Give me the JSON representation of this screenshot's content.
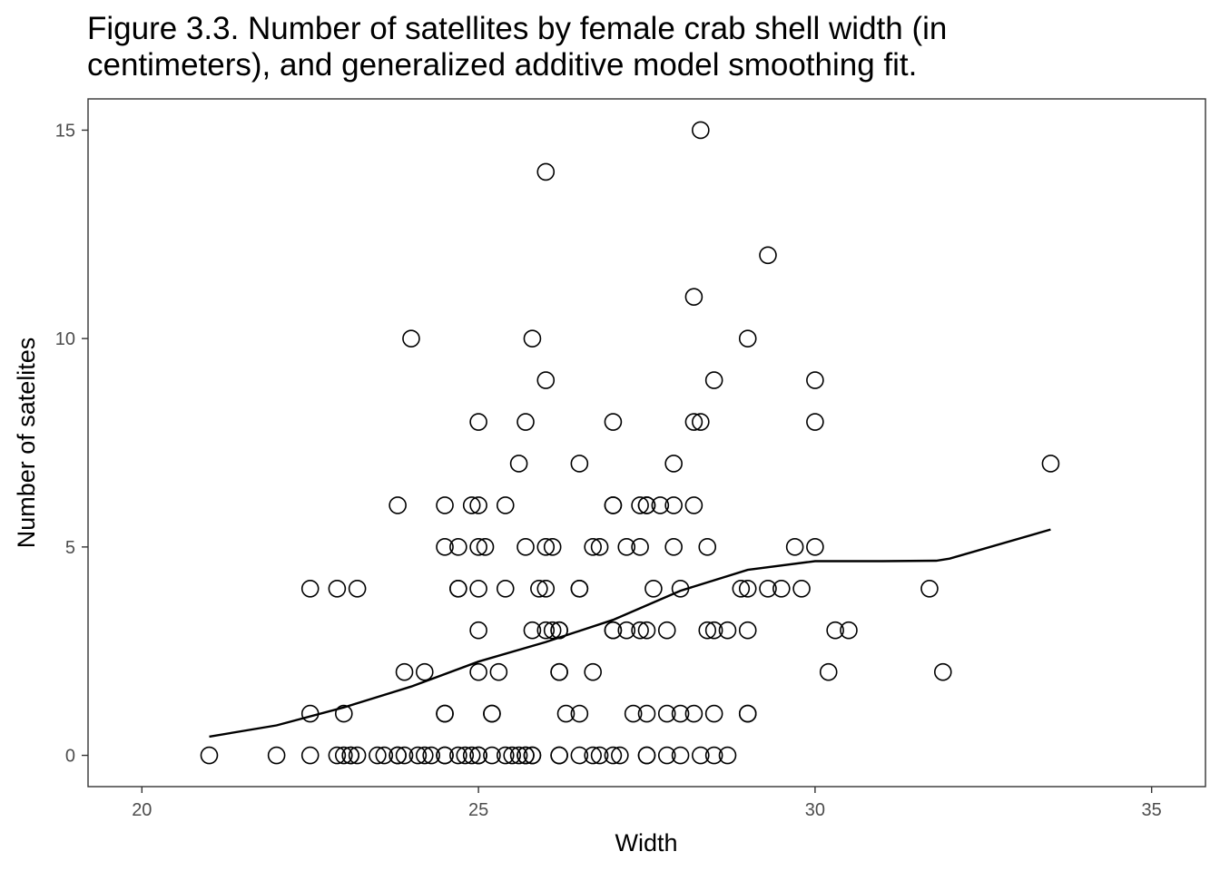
{
  "chart_data": {
    "type": "scatter",
    "title_lines": [
      "Figure 3.3.  Number of satellites by female crab shell width (in",
      "centimeters), and generalized additive model smoothing fit."
    ],
    "xlabel": "Width",
    "ylabel": "Number of satelites",
    "xlim": [
      19.2,
      35.8
    ],
    "ylim": [
      -0.75,
      15.75
    ],
    "x_ticks": [
      20,
      25,
      30,
      35
    ],
    "y_ticks": [
      0,
      5,
      10,
      15
    ],
    "grid": false,
    "legend": "none",
    "point_style": "open-circle",
    "colors": {
      "points": "#000000",
      "line": "#000000",
      "panel_border": "#333333",
      "tick_text": "#4d4d4d"
    },
    "points": [
      [
        21.0,
        0
      ],
      [
        22.0,
        0
      ],
      [
        22.5,
        0
      ],
      [
        22.9,
        0
      ],
      [
        23.0,
        0
      ],
      [
        23.1,
        0
      ],
      [
        23.1,
        0
      ],
      [
        23.2,
        0
      ],
      [
        23.5,
        0
      ],
      [
        23.6,
        0
      ],
      [
        23.8,
        0
      ],
      [
        23.8,
        0
      ],
      [
        23.9,
        0
      ],
      [
        24.1,
        0
      ],
      [
        24.2,
        0
      ],
      [
        24.3,
        0
      ],
      [
        24.5,
        0
      ],
      [
        24.5,
        0
      ],
      [
        24.7,
        0
      ],
      [
        24.8,
        0
      ],
      [
        24.9,
        0
      ],
      [
        25.0,
        0
      ],
      [
        25.0,
        0
      ],
      [
        25.2,
        0
      ],
      [
        25.4,
        0
      ],
      [
        25.5,
        0
      ],
      [
        25.6,
        0
      ],
      [
        25.7,
        0
      ],
      [
        25.7,
        0
      ],
      [
        25.8,
        0
      ],
      [
        25.8,
        0
      ],
      [
        26.2,
        0
      ],
      [
        26.2,
        0
      ],
      [
        26.5,
        0
      ],
      [
        26.7,
        0
      ],
      [
        26.8,
        0
      ],
      [
        27.0,
        0
      ],
      [
        27.1,
        0
      ],
      [
        27.5,
        0
      ],
      [
        27.5,
        0
      ],
      [
        27.8,
        0
      ],
      [
        28.0,
        0
      ],
      [
        28.3,
        0
      ],
      [
        28.5,
        0
      ],
      [
        28.7,
        0
      ],
      [
        22.5,
        1
      ],
      [
        23.0,
        1
      ],
      [
        24.5,
        1
      ],
      [
        24.5,
        1
      ],
      [
        25.2,
        1
      ],
      [
        25.2,
        1
      ],
      [
        26.3,
        1
      ],
      [
        26.5,
        1
      ],
      [
        27.3,
        1
      ],
      [
        27.5,
        1
      ],
      [
        27.8,
        1
      ],
      [
        28.0,
        1
      ],
      [
        28.2,
        1
      ],
      [
        28.5,
        1
      ],
      [
        29.0,
        1
      ],
      [
        29.0,
        1
      ],
      [
        23.9,
        2
      ],
      [
        24.2,
        2
      ],
      [
        25.0,
        2
      ],
      [
        25.3,
        2
      ],
      [
        26.2,
        2
      ],
      [
        26.2,
        2
      ],
      [
        26.7,
        2
      ],
      [
        30.2,
        2
      ],
      [
        31.9,
        2
      ],
      [
        25.0,
        3
      ],
      [
        25.8,
        3
      ],
      [
        26.0,
        3
      ],
      [
        26.1,
        3
      ],
      [
        26.2,
        3
      ],
      [
        26.2,
        3
      ],
      [
        27.0,
        3
      ],
      [
        27.0,
        3
      ],
      [
        27.2,
        3
      ],
      [
        27.4,
        3
      ],
      [
        27.5,
        3
      ],
      [
        27.8,
        3
      ],
      [
        28.4,
        3
      ],
      [
        28.5,
        3
      ],
      [
        28.7,
        3
      ],
      [
        29.0,
        3
      ],
      [
        30.3,
        3
      ],
      [
        30.5,
        3
      ],
      [
        22.5,
        4
      ],
      [
        22.9,
        4
      ],
      [
        23.2,
        4
      ],
      [
        24.7,
        4
      ],
      [
        24.7,
        4
      ],
      [
        25.0,
        4
      ],
      [
        25.4,
        4
      ],
      [
        25.9,
        4
      ],
      [
        26.0,
        4
      ],
      [
        26.5,
        4
      ],
      [
        26.5,
        4
      ],
      [
        27.6,
        4
      ],
      [
        28.0,
        4
      ],
      [
        28.9,
        4
      ],
      [
        29.0,
        4
      ],
      [
        29.3,
        4
      ],
      [
        29.5,
        4
      ],
      [
        29.8,
        4
      ],
      [
        31.7,
        4
      ],
      [
        24.5,
        5
      ],
      [
        24.7,
        5
      ],
      [
        25.0,
        5
      ],
      [
        25.1,
        5
      ],
      [
        25.7,
        5
      ],
      [
        26.0,
        5
      ],
      [
        26.1,
        5
      ],
      [
        26.7,
        5
      ],
      [
        26.8,
        5
      ],
      [
        27.2,
        5
      ],
      [
        27.4,
        5
      ],
      [
        27.9,
        5
      ],
      [
        28.4,
        5
      ],
      [
        29.7,
        5
      ],
      [
        30.0,
        5
      ],
      [
        23.8,
        6
      ],
      [
        24.5,
        6
      ],
      [
        24.9,
        6
      ],
      [
        25.0,
        6
      ],
      [
        25.4,
        6
      ],
      [
        27.0,
        6
      ],
      [
        27.0,
        6
      ],
      [
        27.4,
        6
      ],
      [
        27.5,
        6
      ],
      [
        27.5,
        6
      ],
      [
        27.7,
        6
      ],
      [
        27.9,
        6
      ],
      [
        28.2,
        6
      ],
      [
        25.6,
        7
      ],
      [
        26.5,
        7
      ],
      [
        27.9,
        7
      ],
      [
        33.5,
        7
      ],
      [
        25.0,
        8
      ],
      [
        25.7,
        8
      ],
      [
        27.0,
        8
      ],
      [
        28.2,
        8
      ],
      [
        28.3,
        8
      ],
      [
        30.0,
        8
      ],
      [
        26.0,
        9
      ],
      [
        28.5,
        9
      ],
      [
        30.0,
        9
      ],
      [
        24.0,
        10
      ],
      [
        25.8,
        10
      ],
      [
        29.0,
        10
      ],
      [
        28.2,
        11
      ],
      [
        29.3,
        12
      ],
      [
        26.0,
        14
      ],
      [
        28.3,
        15
      ]
    ],
    "smooth_fit": [
      [
        21.0,
        0.45
      ],
      [
        22.0,
        0.72
      ],
      [
        23.0,
        1.15
      ],
      [
        24.0,
        1.65
      ],
      [
        25.0,
        2.25
      ],
      [
        26.0,
        2.72
      ],
      [
        27.0,
        3.25
      ],
      [
        28.0,
        3.95
      ],
      [
        29.0,
        4.45
      ],
      [
        30.0,
        4.66
      ],
      [
        31.0,
        4.66
      ],
      [
        31.8,
        4.67
      ],
      [
        32.0,
        4.72
      ],
      [
        33.5,
        5.42
      ]
    ]
  }
}
